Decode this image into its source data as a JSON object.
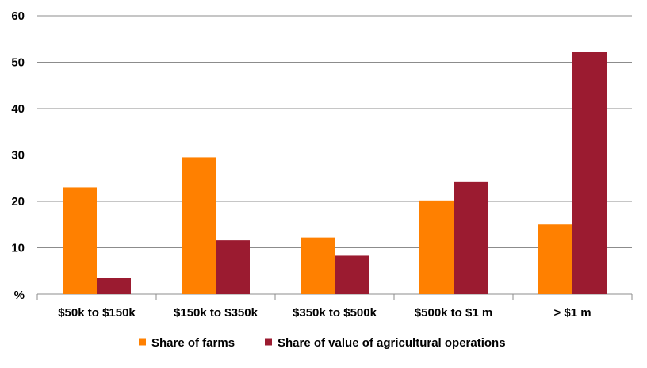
{
  "chart_data": {
    "type": "bar",
    "title": "",
    "xlabel": "",
    "ylabel": "",
    "y_unit_label": "%",
    "ylim": [
      0,
      60
    ],
    "yticks": [
      10,
      20,
      30,
      40,
      50,
      60
    ],
    "grid": true,
    "legend_position": "bottom",
    "categories": [
      "$50k to $150k",
      "$150k to $350k",
      "$350k to $500k",
      "$500k to $1 m",
      "> $1 m"
    ],
    "series": [
      {
        "name": "Share of farms",
        "color": "#FF8000",
        "values": [
          23.0,
          29.5,
          12.2,
          20.2,
          15.0
        ]
      },
      {
        "name": "Share of value of agricultural operations",
        "color": "#9B1B30",
        "values": [
          3.5,
          11.6,
          8.3,
          24.3,
          52.2
        ]
      }
    ]
  }
}
